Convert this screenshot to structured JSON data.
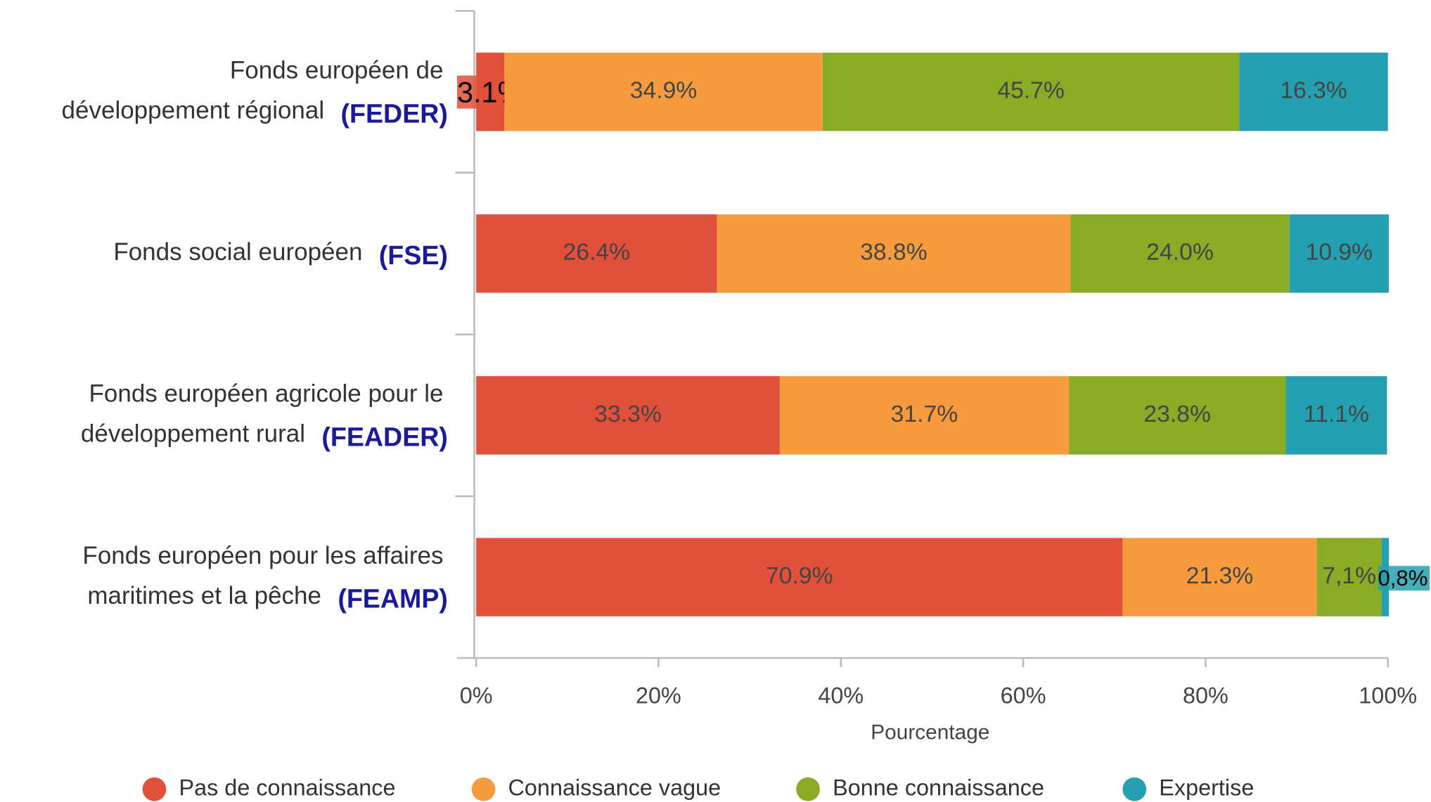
{
  "chart_data": {
    "type": "stacked_bar_horizontal",
    "categories": [
      [
        "Fonds européen de",
        "développement régional"
      ],
      [
        "Fonds social européen"
      ],
      [
        "Fonds européen agricole pour le",
        "développement rural"
      ],
      [
        "Fonds européen pour les affaires",
        "maritimes et la pêche"
      ]
    ],
    "abbreviations": [
      "(FEDER)",
      "(FSE)",
      "(FEADER)",
      "(FEAMP)"
    ],
    "series": [
      {
        "name": "Pas de connaissance",
        "color": "#e0503a",
        "values": [
          3.1,
          26.4,
          33.3,
          70.9
        ],
        "value_labels": [
          "3.1%",
          "26.4%",
          "33.3%",
          "70.9%"
        ]
      },
      {
        "name": "Connaissance vague",
        "color": "#f79c3e",
        "values": [
          34.9,
          38.8,
          31.7,
          21.3
        ],
        "value_labels": [
          "34.9%",
          "38.8%",
          "31.7%",
          "21.3%"
        ]
      },
      {
        "name": "Bonne connaissance",
        "color": "#8aab25",
        "values": [
          45.7,
          24.0,
          23.8,
          7.1
        ],
        "value_labels": [
          "45.7%",
          "24.0%",
          "23.8%",
          "7,1%"
        ]
      },
      {
        "name": "Expertise",
        "color": "#25a0b0",
        "values": [
          16.3,
          10.9,
          11.1,
          0.8
        ],
        "value_labels": [
          "16.3%",
          "10.9%",
          "11.1%",
          "0,8%"
        ]
      }
    ],
    "xlim": [
      0,
      100
    ],
    "xticks": [
      {
        "value": 0,
        "label": "0%"
      },
      {
        "value": 20,
        "label": "20%"
      },
      {
        "value": 40,
        "label": "40%"
      },
      {
        "value": 60,
        "label": "60%"
      },
      {
        "value": 80,
        "label": "80%"
      },
      {
        "value": 100,
        "label": "100%"
      }
    ],
    "xlabel": "Pourcentage",
    "legend": "bottom"
  }
}
